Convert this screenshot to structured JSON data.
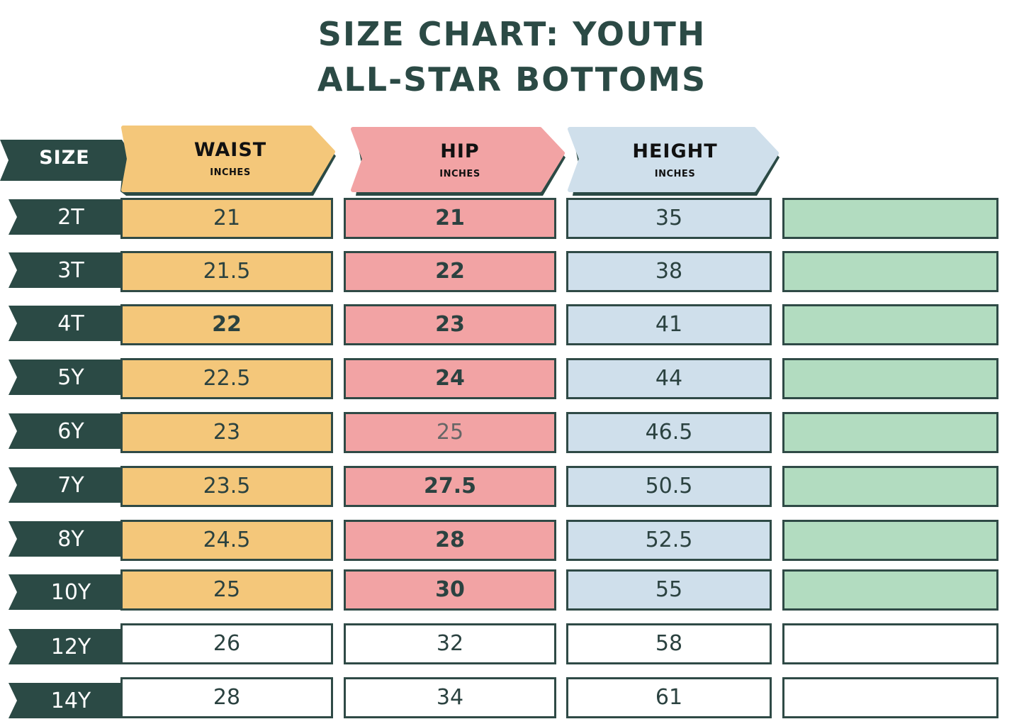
{
  "title": {
    "line1": "SIZE CHART: YOUTH",
    "line2": "ALL-STAR BOTTOMS"
  },
  "headers": {
    "size": "SIZE",
    "waist": {
      "label": "WAIST",
      "unit": "INCHES"
    },
    "hip": {
      "label": "HIP",
      "unit": "INCHES"
    },
    "height": {
      "label": "HEIGHT",
      "unit": "INCHES"
    }
  },
  "colors": {
    "dark": "#2b4a45",
    "waist": "#f4c77a",
    "hip": "#f2a3a4",
    "height": "#cfdfeb",
    "extra": "#b2dcc0",
    "blank": "#ffffff"
  },
  "rows": [
    {
      "size": "2T",
      "waist": "21",
      "hip": "21",
      "height": "35",
      "filled": true
    },
    {
      "size": "3T",
      "waist": "21.5",
      "hip": "22",
      "height": "38",
      "filled": true
    },
    {
      "size": "4T",
      "waist": "22",
      "hip": "23",
      "height": "41",
      "filled": true
    },
    {
      "size": "5Y",
      "waist": "22.5",
      "hip": "24",
      "height": "44",
      "filled": true
    },
    {
      "size": "6Y",
      "waist": "23",
      "hip": "25",
      "height": "46.5",
      "filled": true
    },
    {
      "size": "7Y",
      "waist": "23.5",
      "hip": "27.5",
      "height": "50.5",
      "filled": true
    },
    {
      "size": "8Y",
      "waist": "24.5",
      "hip": "28",
      "height": "52.5",
      "filled": true
    },
    {
      "size": "10Y",
      "waist": "25",
      "hip": "30",
      "height": "55",
      "filled": true
    },
    {
      "size": "12Y",
      "waist": "26",
      "hip": "32",
      "height": "58",
      "filled": false
    },
    {
      "size": "14Y",
      "waist": "28",
      "hip": "34",
      "height": "61",
      "filled": false
    }
  ]
}
